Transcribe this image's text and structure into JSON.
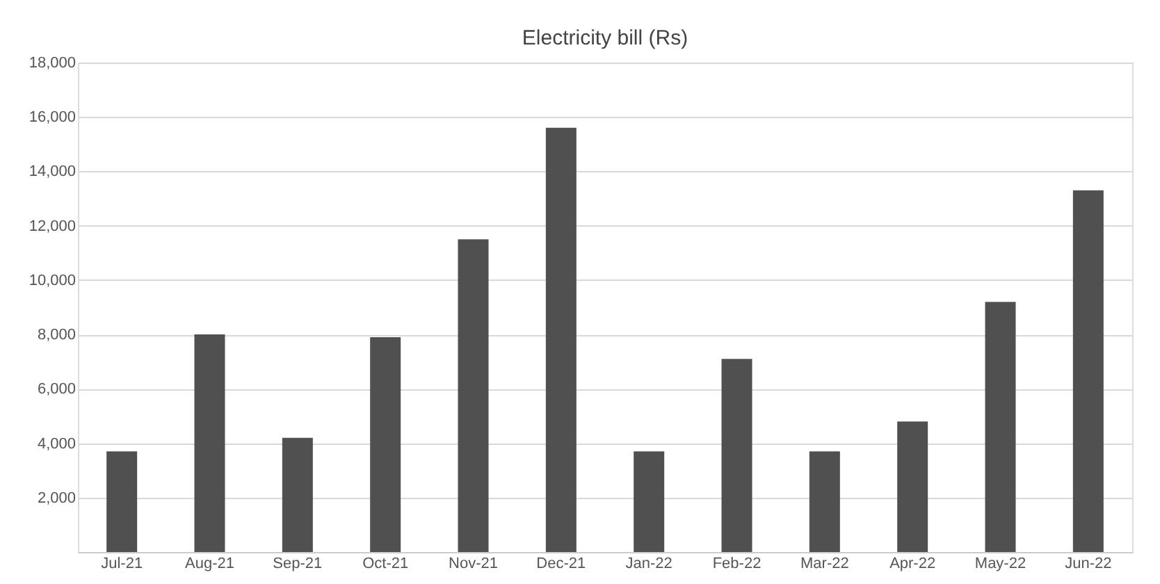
{
  "chart_data": {
    "type": "bar",
    "title": "Electricity bill (Rs)",
    "categories": [
      "Jul-21",
      "Aug-21",
      "Sep-21",
      "Oct-21",
      "Nov-21",
      "Dec-21",
      "Jan-22",
      "Feb-22",
      "Mar-22",
      "Apr-22",
      "May-22",
      "Jun-22"
    ],
    "values": [
      3700,
      8000,
      4200,
      7900,
      11500,
      15600,
      3700,
      7100,
      3700,
      4800,
      9200,
      13300
    ],
    "color": "#505050",
    "ylim": [
      0,
      18000
    ],
    "yticks": [
      {
        "value": 2000,
        "label": "2,000"
      },
      {
        "value": 4000,
        "label": "4,000"
      },
      {
        "value": 6000,
        "label": "6,000"
      },
      {
        "value": 8000,
        "label": "8,000"
      },
      {
        "value": 10000,
        "label": "10,000"
      },
      {
        "value": 12000,
        "label": "12,000"
      },
      {
        "value": 14000,
        "label": "14,000"
      },
      {
        "value": 16000,
        "label": "16,000"
      },
      {
        "value": 18000,
        "label": "18,000"
      }
    ],
    "grid": "y"
  }
}
